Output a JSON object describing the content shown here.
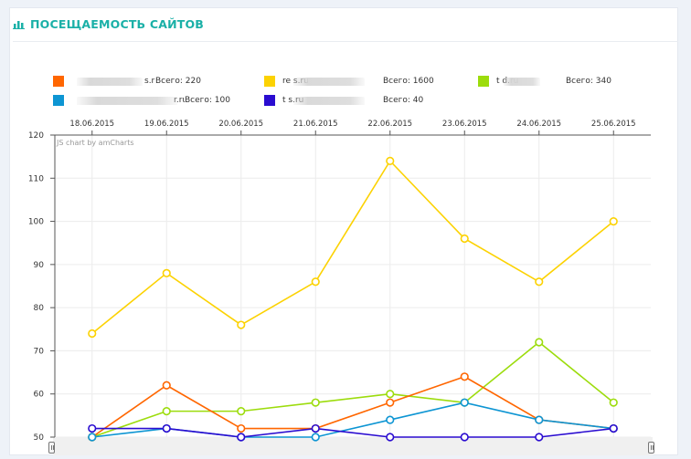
{
  "header": {
    "title": "ПОСЕЩАЕМОСТЬ САЙТОВ",
    "icon": "bar-chart-icon",
    "accent": "#1ab0a7"
  },
  "watermark": "JS chart by amCharts",
  "legend": [
    {
      "name": "s.ru",
      "total": "Всего: 220",
      "color": "#ff6600"
    },
    {
      "name": "re s.ru",
      "total": "Всего: 1600",
      "color": "#fcd202"
    },
    {
      "name": "t d.ru",
      "total": "Всего: 340",
      "color": "#9cdc0c"
    },
    {
      "name": "r.ru",
      "total": "Всего: 100",
      "color": "#0d95d3"
    },
    {
      "name": "t s.ru",
      "total": "Всего: 40",
      "color": "#2a0cd0"
    }
  ],
  "chart_data": {
    "type": "line",
    "title": "",
    "xlabel": "",
    "ylabel": "",
    "x": [
      "18.06.2015",
      "19.06.2015",
      "20.06.2015",
      "21.06.2015",
      "22.06.2015",
      "23.06.2015",
      "24.06.2015",
      "25.06.2015"
    ],
    "ylim": [
      50,
      120
    ],
    "yticks": [
      "50",
      "60",
      "70",
      "80",
      "90",
      "100",
      "110",
      "120"
    ],
    "grid": true,
    "x_axis_position": "top",
    "legend_position": "top",
    "series": [
      {
        "color": "#fcd202",
        "values": [
          74,
          88,
          76,
          86,
          114,
          96,
          86,
          100
        ]
      },
      {
        "color": "#9cdc0c",
        "values": [
          50,
          56,
          56,
          58,
          60,
          58,
          72,
          58
        ]
      },
      {
        "color": "#ff6600",
        "values": [
          50,
          62,
          52,
          52,
          58,
          64,
          54,
          52
        ]
      },
      {
        "color": "#0d95d3",
        "values": [
          50,
          52,
          50,
          50,
          54,
          58,
          54,
          52
        ]
      },
      {
        "color": "#2a0cd0",
        "values": [
          52,
          52,
          50,
          52,
          50,
          50,
          50,
          52
        ]
      }
    ]
  }
}
